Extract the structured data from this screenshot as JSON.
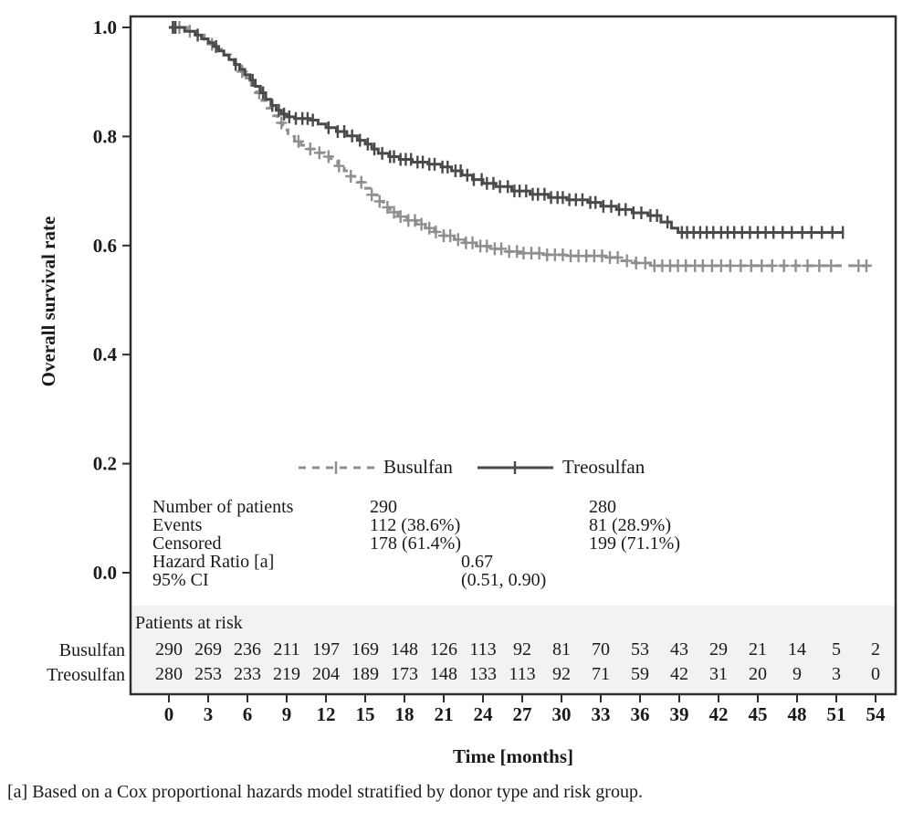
{
  "footnote": "[a] Based on a Cox proportional hazards model stratified by donor type and risk group.",
  "colors": {
    "busulfan": "#8f8f8f",
    "treosulfan": "#4a4a4a",
    "axis": "#2e2e2e",
    "text": "#1a1a1a",
    "risk_band": "#f2f2f2"
  },
  "chart_data": {
    "type": "line",
    "subtype": "kaplan-meier-step",
    "title": "",
    "xlabel": "Time [months]",
    "ylabel": "Overall survival rate",
    "xlim": [
      0,
      54
    ],
    "ylim": [
      0.0,
      1.0
    ],
    "xticks": [
      0,
      3,
      6,
      9,
      12,
      15,
      18,
      21,
      24,
      27,
      30,
      33,
      36,
      39,
      42,
      45,
      48,
      51,
      54
    ],
    "ytick_labels": [
      "0.0",
      "0.2",
      "0.4",
      "0.6",
      "0.8",
      "1.0"
    ],
    "yticks": [
      0.0,
      0.2,
      0.4,
      0.6,
      0.8,
      1.0
    ],
    "grid": false,
    "legend_position": "inside-lower-middle",
    "series": [
      {
        "name": "Busulfan",
        "color": "#8f8f8f",
        "line_style": "dashed",
        "points": [
          [
            0,
            1.0
          ],
          [
            1.4,
            0.993
          ],
          [
            2.1,
            0.986
          ],
          [
            2.7,
            0.978
          ],
          [
            3.2,
            0.969
          ],
          [
            3.7,
            0.96
          ],
          [
            4.2,
            0.95
          ],
          [
            4.7,
            0.94
          ],
          [
            5.1,
            0.93
          ],
          [
            5.5,
            0.919
          ],
          [
            5.9,
            0.907
          ],
          [
            6.3,
            0.894
          ],
          [
            6.7,
            0.88
          ],
          [
            7.1,
            0.866
          ],
          [
            7.5,
            0.852
          ],
          [
            7.9,
            0.838
          ],
          [
            8.3,
            0.825
          ],
          [
            8.7,
            0.812
          ],
          [
            9.1,
            0.8
          ],
          [
            9.6,
            0.791
          ],
          [
            10.1,
            0.784
          ],
          [
            10.7,
            0.777
          ],
          [
            11.3,
            0.77
          ],
          [
            11.9,
            0.763
          ],
          [
            12.4,
            0.755
          ],
          [
            12.9,
            0.746
          ],
          [
            13.4,
            0.737
          ],
          [
            13.9,
            0.727
          ],
          [
            14.4,
            0.716
          ],
          [
            14.9,
            0.705
          ],
          [
            15.4,
            0.693
          ],
          [
            15.9,
            0.681
          ],
          [
            16.4,
            0.67
          ],
          [
            16.9,
            0.661
          ],
          [
            17.5,
            0.653
          ],
          [
            18.2,
            0.646
          ],
          [
            18.9,
            0.639
          ],
          [
            19.6,
            0.632
          ],
          [
            20.3,
            0.625
          ],
          [
            21.0,
            0.618
          ],
          [
            21.8,
            0.611
          ],
          [
            22.6,
            0.605
          ],
          [
            23.5,
            0.599
          ],
          [
            24.5,
            0.594
          ],
          [
            25.6,
            0.589
          ],
          [
            26.8,
            0.586
          ],
          [
            28.4,
            0.583
          ],
          [
            30.5,
            0.581
          ],
          [
            33.4,
            0.578
          ],
          [
            34.4,
            0.572
          ],
          [
            35.6,
            0.568
          ],
          [
            36.8,
            0.563
          ],
          [
            53.5,
            0.563
          ]
        ],
        "censor_times": [
          0.4,
          0.8,
          1.6,
          3.3,
          5.6,
          6.9,
          8.6,
          9.9,
          10.8,
          11.5,
          12.2,
          13.0,
          13.9,
          14.7,
          15.5,
          16.1,
          16.7,
          17.2,
          17.7,
          18.3,
          18.8,
          19.3,
          19.9,
          20.4,
          21.0,
          21.5,
          22.1,
          22.7,
          23.2,
          23.8,
          24.3,
          24.9,
          25.4,
          26.0,
          26.6,
          27.1,
          27.7,
          28.3,
          28.9,
          29.5,
          30.1,
          30.7,
          31.3,
          31.9,
          32.5,
          33.1,
          33.7,
          34.3,
          35.0,
          35.7,
          36.4,
          37.1,
          37.7,
          38.3,
          38.9,
          39.5,
          40.2,
          40.8,
          41.5,
          42.2,
          42.9,
          43.7,
          44.5,
          45.3,
          46.1,
          47.0,
          47.9,
          48.8,
          49.7,
          50.6,
          52.7,
          53.3
        ]
      },
      {
        "name": "Treosulfan",
        "color": "#4a4a4a",
        "line_style": "solid",
        "points": [
          [
            0,
            1.0
          ],
          [
            1.2,
            0.993
          ],
          [
            2.0,
            0.986
          ],
          [
            2.5,
            0.979
          ],
          [
            3.0,
            0.972
          ],
          [
            3.4,
            0.965
          ],
          [
            3.8,
            0.957
          ],
          [
            4.2,
            0.949
          ],
          [
            4.6,
            0.941
          ],
          [
            5.0,
            0.932
          ],
          [
            5.4,
            0.923
          ],
          [
            5.8,
            0.913
          ],
          [
            6.2,
            0.903
          ],
          [
            6.6,
            0.892
          ],
          [
            7.0,
            0.88
          ],
          [
            7.4,
            0.868
          ],
          [
            7.8,
            0.857
          ],
          [
            8.2,
            0.848
          ],
          [
            8.6,
            0.841
          ],
          [
            9.0,
            0.836
          ],
          [
            9.6,
            0.833
          ],
          [
            10.8,
            0.83
          ],
          [
            11.4,
            0.823
          ],
          [
            12.0,
            0.816
          ],
          [
            12.8,
            0.809
          ],
          [
            13.6,
            0.801
          ],
          [
            14.4,
            0.793
          ],
          [
            15.0,
            0.786
          ],
          [
            15.5,
            0.777
          ],
          [
            16.0,
            0.769
          ],
          [
            16.8,
            0.763
          ],
          [
            17.6,
            0.758
          ],
          [
            18.6,
            0.753
          ],
          [
            19.8,
            0.749
          ],
          [
            20.8,
            0.744
          ],
          [
            21.6,
            0.737
          ],
          [
            22.4,
            0.729
          ],
          [
            23.2,
            0.721
          ],
          [
            24.0,
            0.714
          ],
          [
            25.0,
            0.708
          ],
          [
            26.2,
            0.7
          ],
          [
            27.6,
            0.694
          ],
          [
            29.0,
            0.688
          ],
          [
            30.4,
            0.684
          ],
          [
            32.0,
            0.679
          ],
          [
            33.0,
            0.672
          ],
          [
            34.2,
            0.666
          ],
          [
            35.4,
            0.66
          ],
          [
            36.6,
            0.655
          ],
          [
            37.6,
            0.643
          ],
          [
            38.4,
            0.632
          ],
          [
            38.9,
            0.624
          ],
          [
            51.5,
            0.624
          ]
        ],
        "censor_times": [
          0.3,
          0.5,
          2.2,
          3.6,
          5.1,
          6.4,
          7.2,
          7.9,
          8.4,
          8.8,
          9.2,
          9.7,
          10.2,
          10.6,
          11.0,
          12.2,
          12.9,
          13.4,
          14.0,
          14.6,
          15.2,
          15.7,
          16.3,
          16.9,
          17.2,
          17.7,
          18.1,
          18.5,
          19.0,
          19.4,
          19.9,
          20.3,
          20.9,
          21.3,
          21.9,
          22.3,
          22.8,
          23.3,
          23.9,
          24.3,
          24.8,
          25.3,
          25.9,
          26.4,
          26.8,
          27.3,
          27.8,
          28.2,
          28.7,
          29.2,
          29.7,
          30.1,
          30.6,
          31.1,
          31.6,
          32.2,
          32.6,
          33.2,
          33.8,
          34.4,
          34.9,
          35.5,
          36.1,
          36.8,
          37.3,
          38.1,
          39.2,
          39.6,
          40.1,
          40.6,
          41.1,
          41.6,
          42.2,
          42.7,
          43.2,
          43.8,
          44.4,
          45.0,
          45.6,
          46.2,
          46.9,
          47.6,
          48.4,
          49.1,
          49.9,
          50.7,
          51.5
        ]
      }
    ],
    "stats_table": {
      "rows": [
        {
          "label": "Number of patients",
          "busulfan": "290",
          "treosulfan": "280"
        },
        {
          "label": "Events",
          "busulfan": "112 (38.6%)",
          "treosulfan": "81 (28.9%)"
        },
        {
          "label": "Censored",
          "busulfan": "178 (61.4%)",
          "treosulfan": "199 (71.1%)"
        },
        {
          "label": "Hazard Ratio [a]",
          "center": "0.67"
        },
        {
          "label": "95% CI",
          "center": "(0.51, 0.90)"
        }
      ]
    },
    "risk_table": {
      "header": "Patients at risk",
      "rows": [
        {
          "label": "Busulfan",
          "values": [
            290,
            269,
            236,
            211,
            197,
            169,
            148,
            126,
            113,
            92,
            81,
            70,
            53,
            43,
            29,
            21,
            14,
            5,
            2
          ]
        },
        {
          "label": "Treosulfan",
          "values": [
            280,
            253,
            233,
            219,
            204,
            189,
            173,
            148,
            133,
            113,
            92,
            71,
            59,
            42,
            31,
            20,
            9,
            3,
            0
          ]
        }
      ]
    }
  }
}
